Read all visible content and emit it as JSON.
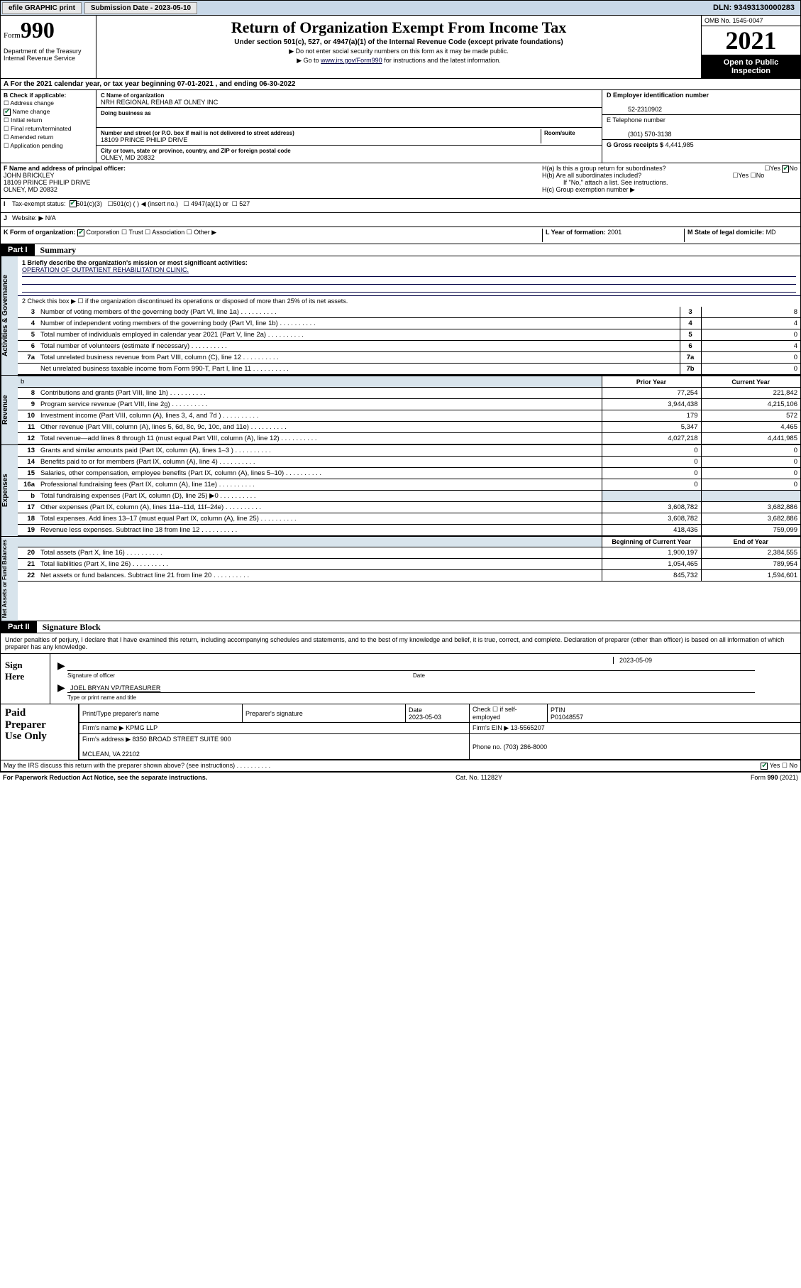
{
  "topbar": {
    "efile": "efile GRAPHIC print",
    "submission_label": "Submission Date - 2023-05-10",
    "dln": "DLN: 93493130000283"
  },
  "header": {
    "form_label": "Form",
    "form_number": "990",
    "dept": "Department of the Treasury\nInternal Revenue Service",
    "title": "Return of Organization Exempt From Income Tax",
    "subtitle": "Under section 501(c), 527, or 4947(a)(1) of the Internal Revenue Code (except private foundations)",
    "note1": "▶ Do not enter social security numbers on this form as it may be made public.",
    "note2": "▶ Go to www.irs.gov/Form990 for instructions and the latest information.",
    "omb": "OMB No. 1545-0047",
    "year": "2021",
    "open": "Open to Public\nInspection"
  },
  "taxyear": "A For the 2021 calendar year, or tax year beginning 07-01-2021   , and ending 06-30-2022",
  "box_b": {
    "label": "B Check if applicable:",
    "items": [
      "Address change",
      "Name change",
      "Initial return",
      "Final return/terminated",
      "Amended return",
      "Application pending"
    ],
    "checked": [
      false,
      true,
      false,
      false,
      false,
      false
    ]
  },
  "box_c": {
    "name_label": "C Name of organization",
    "name": "NRH REGIONAL REHAB AT OLNEY INC",
    "dba_label": "Doing business as",
    "addr_label": "Number and street (or P.O. box if mail is not delivered to street address)",
    "room_label": "Room/suite",
    "addr": "18109 PRINCE PHILIP DRIVE",
    "city_label": "City or town, state or province, country, and ZIP or foreign postal code",
    "city": "OLNEY, MD  20832"
  },
  "box_d": {
    "label": "D Employer identification number",
    "value": "52-2310902"
  },
  "box_e": {
    "label": "E Telephone number",
    "value": "(301) 570-3138"
  },
  "box_g": {
    "label": "G Gross receipts $",
    "value": "4,441,985"
  },
  "box_f": {
    "label": "F  Name and address of principal officer:",
    "name": "JOHN BRICKLEY",
    "addr": "18109 PRINCE PHILIP DRIVE\nOLNEY, MD  20832"
  },
  "box_h": {
    "ha": "H(a)  Is this a group return for subordinates?",
    "ha_yes": false,
    "ha_no": true,
    "hb": "H(b)  Are all subordinates included?",
    "hb_note": "If \"No,\" attach a list. See instructions.",
    "hc": "H(c)  Group exemption number ▶"
  },
  "box_i": {
    "label": "I",
    "text": "Tax-exempt status:",
    "c501c3": true,
    "c501c": false,
    "c4947": false,
    "c527": false,
    "insert": "501(c) (   ) ◀ (insert no.)"
  },
  "box_j": {
    "label": "J",
    "text": "Website: ▶",
    "value": "N/A"
  },
  "box_k": {
    "label": "K Form of organization:",
    "corp": true,
    "trust": false,
    "assoc": false,
    "other": false
  },
  "box_l": {
    "label": "L Year of formation:",
    "value": "2001"
  },
  "box_m": {
    "label": "M State of legal domicile:",
    "value": "MD"
  },
  "part1": {
    "tab": "Part I",
    "title": "Summary"
  },
  "summary": {
    "line1_label": "1  Briefly describe the organization's mission or most significant activities:",
    "line1_text": "OPERATION OF OUTPATIENT REHABILITATION CLINIC.",
    "line2": "2   Check this box ▶ ☐  if the organization discontinued its operations or disposed of more than 25% of its net assets.",
    "rows_simple": [
      {
        "n": "3",
        "text": "Number of voting members of the governing body (Part VI, line 1a)",
        "num": "3",
        "val": "8"
      },
      {
        "n": "4",
        "text": "Number of independent voting members of the governing body (Part VI, line 1b)",
        "num": "4",
        "val": "4"
      },
      {
        "n": "5",
        "text": "Total number of individuals employed in calendar year 2021 (Part V, line 2a)",
        "num": "5",
        "val": "0"
      },
      {
        "n": "6",
        "text": "Total number of volunteers (estimate if necessary)",
        "num": "6",
        "val": "4"
      },
      {
        "n": "7a",
        "text": "Total unrelated business revenue from Part VIII, column (C), line 12",
        "num": "7a",
        "val": "0"
      },
      {
        "n": "",
        "text": "Net unrelated business taxable income from Form 990-T, Part I, line 11",
        "num": "7b",
        "val": "0"
      }
    ],
    "head_prior": "Prior Year",
    "head_current": "Current Year",
    "revenue": [
      {
        "n": "8",
        "text": "Contributions and grants (Part VIII, line 1h)",
        "p": "77,254",
        "c": "221,842"
      },
      {
        "n": "9",
        "text": "Program service revenue (Part VIII, line 2g)",
        "p": "3,944,438",
        "c": "4,215,106"
      },
      {
        "n": "10",
        "text": "Investment income (Part VIII, column (A), lines 3, 4, and 7d )",
        "p": "179",
        "c": "572"
      },
      {
        "n": "11",
        "text": "Other revenue (Part VIII, column (A), lines 5, 6d, 8c, 9c, 10c, and 11e)",
        "p": "5,347",
        "c": "4,465"
      },
      {
        "n": "12",
        "text": "Total revenue—add lines 8 through 11 (must equal Part VIII, column (A), line 12)",
        "p": "4,027,218",
        "c": "4,441,985"
      }
    ],
    "expenses": [
      {
        "n": "13",
        "text": "Grants and similar amounts paid (Part IX, column (A), lines 1–3 )",
        "p": "0",
        "c": "0"
      },
      {
        "n": "14",
        "text": "Benefits paid to or for members (Part IX, column (A), line 4)",
        "p": "0",
        "c": "0"
      },
      {
        "n": "15",
        "text": "Salaries, other compensation, employee benefits (Part IX, column (A), lines 5–10)",
        "p": "0",
        "c": "0"
      },
      {
        "n": "16a",
        "text": "Professional fundraising fees (Part IX, column (A), line 11e)",
        "p": "0",
        "c": "0"
      },
      {
        "n": "b",
        "text": "Total fundraising expenses (Part IX, column (D), line 25) ▶0",
        "p": "",
        "c": "",
        "shade": true
      },
      {
        "n": "17",
        "text": "Other expenses (Part IX, column (A), lines 11a–11d, 11f–24e)",
        "p": "3,608,782",
        "c": "3,682,886"
      },
      {
        "n": "18",
        "text": "Total expenses. Add lines 13–17 (must equal Part IX, column (A), line 25)",
        "p": "3,608,782",
        "c": "3,682,886"
      },
      {
        "n": "19",
        "text": "Revenue less expenses. Subtract line 18 from line 12",
        "p": "418,436",
        "c": "759,099"
      }
    ],
    "head_begin": "Beginning of Current Year",
    "head_end": "End of Year",
    "netassets": [
      {
        "n": "20",
        "text": "Total assets (Part X, line 16)",
        "p": "1,900,197",
        "c": "2,384,555"
      },
      {
        "n": "21",
        "text": "Total liabilities (Part X, line 26)",
        "p": "1,054,465",
        "c": "789,954"
      },
      {
        "n": "22",
        "text": "Net assets or fund balances. Subtract line 21 from line 20",
        "p": "845,732",
        "c": "1,594,601"
      }
    ]
  },
  "sidelabels": {
    "gov": "Activities & Governance",
    "rev": "Revenue",
    "exp": "Expenses",
    "net": "Net Assets or\nFund Balances"
  },
  "part2": {
    "tab": "Part II",
    "title": "Signature Block"
  },
  "sig": {
    "decl": "Under penalties of perjury, I declare that I have examined this return, including accompanying schedules and statements, and to the best of my knowledge and belief, it is true, correct, and complete. Declaration of preparer (other than officer) is based on all information of which preparer has any knowledge.",
    "sign_here": "Sign\nHere",
    "sig_of_officer": "Signature of officer",
    "sig_date": "2023-05-09",
    "date_label": "Date",
    "officer_name": "JOEL BRYAN  VP/TREASURER",
    "officer_sub": "Type or print name and title"
  },
  "prep": {
    "label": "Paid\nPreparer\nUse Only",
    "h_name": "Print/Type preparer's name",
    "h_sig": "Preparer's signature",
    "h_date": "Date",
    "date": "2023-05-03",
    "h_check": "Check ☐ if self-employed",
    "h_ptin": "PTIN",
    "ptin": "P01048557",
    "firm_name_label": "Firm's name    ▶",
    "firm_name": "KPMG LLP",
    "firm_ein_label": "Firm's EIN ▶",
    "firm_ein": "13-5565207",
    "firm_addr_label": "Firm's address ▶",
    "firm_addr": "8350 BROAD STREET SUITE 900\n\nMCLEAN, VA  22102",
    "phone_label": "Phone no.",
    "phone": "(703) 286-8000"
  },
  "irs_discuss": {
    "text": "May the IRS discuss this return with the preparer shown above? (see instructions)",
    "yes": true,
    "no": false
  },
  "footer": {
    "pra": "For Paperwork Reduction Act Notice, see the separate instructions.",
    "cat": "Cat. No. 11282Y",
    "form": "Form 990 (2021)"
  }
}
